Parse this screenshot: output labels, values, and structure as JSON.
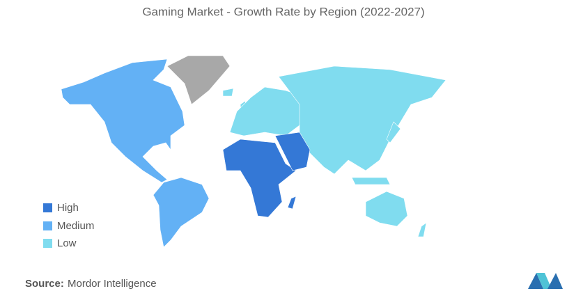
{
  "title": "Gaming Market - Growth Rate by Region (2022-2027)",
  "legend": [
    {
      "label": "High",
      "color": "#3478d6"
    },
    {
      "label": "Medium",
      "color": "#63b1f5"
    },
    {
      "label": "Low",
      "color": "#80dcef"
    }
  ],
  "source": {
    "label": "Source:",
    "text": "Mordor Intelligence"
  }
}
